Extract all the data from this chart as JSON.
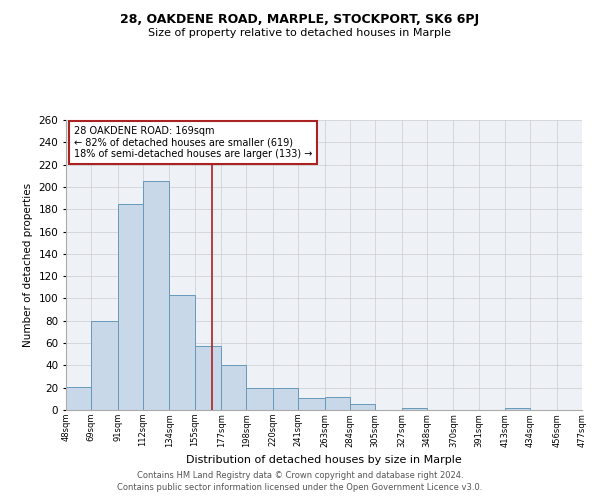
{
  "title1": "28, OAKDENE ROAD, MARPLE, STOCKPORT, SK6 6PJ",
  "title2": "Size of property relative to detached houses in Marple",
  "xlabel": "Distribution of detached houses by size in Marple",
  "ylabel": "Number of detached properties",
  "bin_edges": [
    48,
    69,
    91,
    112,
    134,
    155,
    177,
    198,
    220,
    241,
    263,
    284,
    305,
    327,
    348,
    370,
    391,
    413,
    434,
    456,
    477
  ],
  "bin_labels": [
    "48sqm",
    "69sqm",
    "91sqm",
    "112sqm",
    "134sqm",
    "155sqm",
    "177sqm",
    "198sqm",
    "220sqm",
    "241sqm",
    "263sqm",
    "284sqm",
    "305sqm",
    "327sqm",
    "348sqm",
    "370sqm",
    "391sqm",
    "413sqm",
    "434sqm",
    "456sqm",
    "477sqm"
  ],
  "counts": [
    21,
    80,
    185,
    205,
    103,
    57,
    40,
    20,
    20,
    11,
    12,
    5,
    0,
    2,
    0,
    0,
    0,
    2,
    0,
    0
  ],
  "bar_facecolor": "#c8d8e8",
  "bar_edgecolor": "#6699bb",
  "property_value": 169,
  "vline_color": "#aa2222",
  "annotation_box_edgecolor": "#aa2222",
  "annotation_line1": "28 OAKDENE ROAD: 169sqm",
  "annotation_line2": "← 82% of detached houses are smaller (619)",
  "annotation_line3": "18% of semi-detached houses are larger (133) →",
  "ylim": [
    0,
    260
  ],
  "yticks": [
    0,
    20,
    40,
    60,
    80,
    100,
    120,
    140,
    160,
    180,
    200,
    220,
    240,
    260
  ],
  "grid_color": "#cccccc",
  "bg_color": "#eef2f7",
  "footer1": "Contains HM Land Registry data © Crown copyright and database right 2024.",
  "footer2": "Contains public sector information licensed under the Open Government Licence v3.0."
}
